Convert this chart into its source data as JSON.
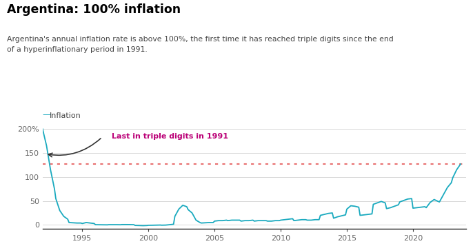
{
  "title": "Argentina: 100% inflation",
  "subtitle": "Argentina's annual inflation rate is above 100%, the first time it has reached triple digits since the end\nof a hyperinflationary period in 1991.",
  "legend_label": "Inflation",
  "annotation_text": "Last in triple digits in 1991",
  "annotation_color": "#bb0077",
  "line_color": "#1aaabf",
  "dotted_line_y": 127,
  "dotted_line_color": "#e87070",
  "bg_color": "#ffffff",
  "title_color": "#000000",
  "subtitle_color": "#444444",
  "ylim": [
    -8,
    215
  ],
  "yticks": [
    0,
    50,
    100,
    150,
    200
  ],
  "ytick_labels": [
    "0",
    "50",
    "100",
    "150",
    "200%"
  ],
  "xticks": [
    1995,
    2000,
    2005,
    2010,
    2015,
    2020
  ],
  "xlim": [
    1992,
    2024
  ],
  "years_data": [
    1992.0,
    1992.3,
    1992.6,
    1992.9,
    1993.0,
    1993.3,
    1993.6,
    1993.9,
    1994.0,
    1994.3,
    1994.6,
    1994.9,
    1995.0,
    1995.3,
    1995.6,
    1995.9,
    1996.0,
    1996.3,
    1996.6,
    1996.9,
    1997.0,
    1997.3,
    1997.6,
    1997.9,
    1998.0,
    1998.3,
    1998.6,
    1998.9,
    1999.0,
    1999.3,
    1999.6,
    1999.9,
    2000.0,
    2000.3,
    2000.6,
    2000.9,
    2001.0,
    2001.3,
    2001.6,
    2001.9,
    2002.0,
    2002.3,
    2002.6,
    2002.9,
    2003.0,
    2003.3,
    2003.6,
    2003.9,
    2004.0,
    2004.3,
    2004.6,
    2004.9,
    2005.0,
    2005.3,
    2005.6,
    2005.9,
    2006.0,
    2006.3,
    2006.6,
    2006.9,
    2007.0,
    2007.3,
    2007.6,
    2007.9,
    2008.0,
    2008.3,
    2008.6,
    2008.9,
    2009.0,
    2009.3,
    2009.6,
    2009.9,
    2010.0,
    2010.3,
    2010.6,
    2010.9,
    2011.0,
    2011.3,
    2011.6,
    2011.9,
    2012.0,
    2012.3,
    2012.6,
    2012.9,
    2013.0,
    2013.3,
    2013.6,
    2013.9,
    2014.0,
    2014.3,
    2014.6,
    2014.9,
    2015.0,
    2015.3,
    2015.6,
    2015.9,
    2016.0,
    2016.3,
    2016.6,
    2016.9,
    2017.0,
    2017.3,
    2017.6,
    2017.9,
    2018.0,
    2018.3,
    2018.6,
    2018.9,
    2019.0,
    2019.3,
    2019.6,
    2019.9,
    2020.0,
    2020.3,
    2020.6,
    2020.9,
    2021.0,
    2021.3,
    2021.6,
    2021.9,
    2022.0,
    2022.3,
    2022.6,
    2022.9,
    2023.0,
    2023.3,
    2023.6
  ],
  "inflation_data": [
    200,
    165,
    115,
    75,
    55,
    30,
    18,
    12,
    5,
    4.5,
    4,
    4,
    3,
    5,
    4,
    3,
    0.5,
    0.4,
    0.3,
    0.2,
    0.5,
    0.5,
    0.5,
    0.4,
    0.8,
    0.8,
    0.7,
    0.5,
    -1,
    -1.2,
    -1.5,
    -1.2,
    -0.7,
    -0.6,
    -0.4,
    -0.2,
    -0.5,
    -0.3,
    0.5,
    1.5,
    18,
    33,
    41,
    38,
    32,
    25,
    10,
    5,
    4,
    4.5,
    5,
    5,
    8,
    9,
    9,
    10,
    9,
    10,
    10,
    10,
    8,
    9,
    9,
    10,
    8,
    9,
    9,
    9,
    8,
    8,
    9,
    9,
    10,
    11,
    12,
    13,
    9,
    10,
    11,
    11,
    10,
    10,
    11,
    11,
    20,
    22,
    24,
    25,
    14,
    17,
    19,
    21,
    33,
    40,
    39,
    37,
    20,
    21,
    22,
    23,
    43,
    46,
    49,
    46,
    34,
    36,
    39,
    42,
    48,
    51,
    54,
    55,
    35,
    36,
    37,
    38,
    36,
    47,
    53,
    49,
    48,
    63,
    78,
    88,
    98,
    115,
    127
  ]
}
